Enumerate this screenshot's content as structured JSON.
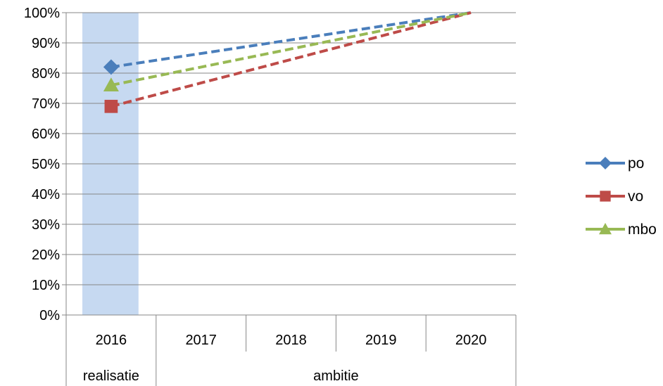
{
  "chart_data": {
    "type": "line",
    "categories": [
      "2016",
      "2017",
      "2018",
      "2019",
      "2020"
    ],
    "groups": [
      {
        "label": "realisatie",
        "categories": [
          "2016"
        ]
      },
      {
        "label": "ambitie",
        "categories": [
          "2017",
          "2018",
          "2019",
          "2020"
        ]
      }
    ],
    "highlight": {
      "category": "2016",
      "color": "#c6d9f1"
    },
    "ylim": [
      0,
      1
    ],
    "yticks": [
      "0%",
      "10%",
      "20%",
      "30%",
      "40%",
      "50%",
      "60%",
      "70%",
      "80%",
      "90%",
      "100%"
    ],
    "grid": true,
    "legend_position": "right",
    "line_style": "dashed",
    "series": [
      {
        "name": "po",
        "color": "#4a7ebb",
        "marker": "diamond",
        "values": [
          0.82,
          0.865,
          0.91,
          0.955,
          1.0
        ],
        "marked_points": [
          0
        ]
      },
      {
        "name": "vo",
        "color": "#be4b48",
        "marker": "square",
        "values": [
          0.69,
          0.7675,
          0.845,
          0.9225,
          1.0
        ],
        "marked_points": [
          0
        ]
      },
      {
        "name": "mbo",
        "color": "#98b954",
        "marker": "triangle",
        "values": [
          0.76,
          0.82,
          0.88,
          0.94,
          1.0
        ],
        "marked_points": [
          0
        ]
      }
    ]
  }
}
